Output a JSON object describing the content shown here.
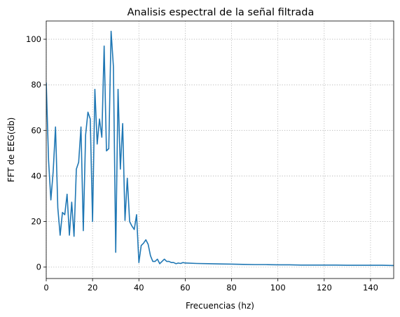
{
  "chart_data": {
    "type": "line",
    "title": "Analisis espectral de la señal filtrada",
    "xlabel": "Frecuencias (hz)",
    "ylabel": "FFT de EEG(db)",
    "xlim": [
      0,
      150
    ],
    "ylim": [
      -5,
      108
    ],
    "xticks": [
      0,
      20,
      40,
      60,
      80,
      100,
      120,
      140
    ],
    "yticks": [
      0,
      20,
      40,
      60,
      80,
      100
    ],
    "grid": true,
    "line_color": "#1f77b4",
    "series": [
      {
        "x": [
          0,
          1,
          2,
          3,
          4,
          5,
          6,
          7,
          8,
          9,
          10,
          11,
          12,
          13,
          14,
          15,
          16,
          17,
          18,
          19,
          20,
          21,
          22,
          23,
          24,
          25,
          26,
          27,
          28,
          29,
          30,
          31,
          32,
          33,
          34,
          35,
          36,
          37,
          38,
          39,
          40,
          41,
          42,
          43,
          44,
          45,
          46,
          47,
          48,
          49,
          50,
          51,
          52,
          53,
          54,
          55,
          56,
          57,
          58,
          59,
          60,
          65,
          70,
          75,
          80,
          85,
          90,
          95,
          100,
          105,
          110,
          115,
          120,
          125,
          130,
          135,
          140,
          145,
          150
        ],
        "y": [
          81,
          47,
          29.5,
          42,
          61.5,
          26,
          14,
          24,
          23,
          32,
          14,
          28.5,
          13.5,
          43,
          46,
          61.5,
          16,
          58,
          68,
          65,
          20,
          78,
          54,
          65,
          57,
          97,
          51,
          52,
          103.5,
          88,
          6.5,
          78,
          43,
          63,
          20.5,
          39,
          20,
          18,
          16.5,
          23,
          2,
          9.5,
          10.5,
          12,
          10,
          5,
          2.5,
          2.5,
          3.5,
          1.5,
          2.5,
          3.5,
          2.5,
          2.5,
          2,
          2,
          1.5,
          1.8,
          1.6,
          2,
          1.8,
          1.6,
          1.5,
          1.4,
          1.3,
          1.2,
          1.1,
          1.1,
          1,
          1,
          0.9,
          0.9,
          0.9,
          0.9,
          0.8,
          0.8,
          0.8,
          0.8,
          0.7
        ]
      }
    ]
  }
}
